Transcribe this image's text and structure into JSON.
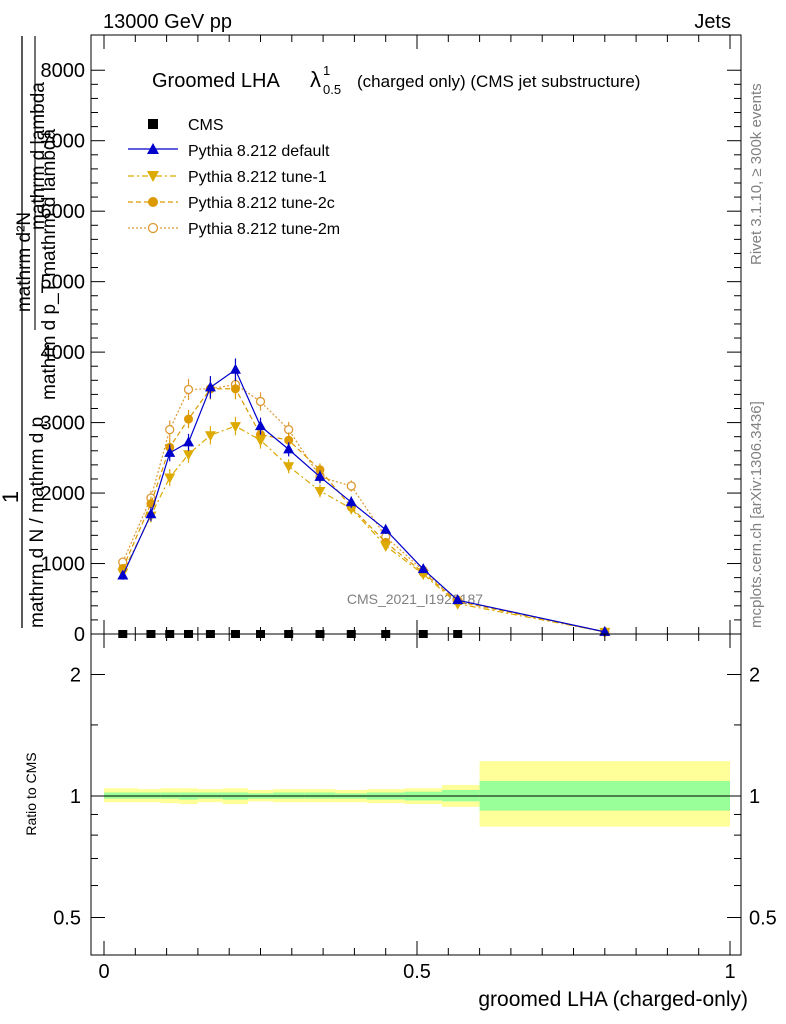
{
  "header": {
    "left": "13000 GeV pp",
    "right": "Jets"
  },
  "side_labels": {
    "rivet": "Rivet 3.1.10, ≥ 300k events",
    "mcplots": "mcplots.cern.ch [arXiv:1306.3436]"
  },
  "watermark": "CMS_2021_I1920187",
  "colors": {
    "cms": "#000000",
    "default": "#0000cc",
    "tune1": "#ddaa00",
    "tune2c": "#dd9900",
    "tune2m": "#dd9933",
    "band_outer": "#ffff99",
    "band_inner": "#99ff99"
  },
  "chart_data": [
    {
      "type": "line",
      "title_main": "Groomed LHA",
      "title_symbol": "λ",
      "title_sup": "1",
      "title_sub": "0.5",
      "title_rest": "(charged only) (CMS jet substructure)",
      "ylabel_numerator": "1",
      "ylabel_denominator": "mathrm d N / mathrm d p",
      "ylabel_denominator_rest": "mathrm d p_T mathrm d lambda",
      "ylabel_inner": "mathrm d²N",
      "ylabel_inner2": "mathrm d p_T mathrm d lambda",
      "ylim": [
        0,
        8500
      ],
      "yticks": [
        0,
        1000,
        2000,
        3000,
        4000,
        5000,
        6000,
        7000,
        8000
      ],
      "ytick_labels": [
        "0",
        "1000",
        "2000",
        "3000",
        "4000",
        "5000",
        "6000",
        "7000",
        "8000"
      ],
      "xlim": [
        -0.04,
        1.02
      ],
      "legend": [
        "CMS",
        "Pythia 8.212 default",
        "Pythia 8.212 tune-1",
        "Pythia 8.212 tune-2c",
        "Pythia 8.212 tune-2m"
      ],
      "series": [
        {
          "name": "CMS",
          "x": [
            0.03,
            0.075,
            0.105,
            0.135,
            0.17,
            0.21,
            0.25,
            0.295,
            0.345,
            0.395,
            0.45,
            0.51,
            0.565
          ],
          "y": [
            0,
            0,
            0,
            0,
            0,
            0,
            0,
            0,
            0,
            0,
            0,
            0,
            0
          ]
        },
        {
          "name": "Pythia 8.212 default",
          "x": [
            0.03,
            0.075,
            0.105,
            0.135,
            0.17,
            0.21,
            0.25,
            0.295,
            0.345,
            0.395,
            0.45,
            0.51,
            0.565,
            0.8
          ],
          "y": [
            830,
            1700,
            2570,
            2720,
            3500,
            3750,
            2950,
            2620,
            2230,
            1870,
            1480,
            920,
            480,
            30
          ],
          "err": [
            60,
            100,
            120,
            120,
            160,
            160,
            120,
            100,
            90,
            80,
            60,
            50,
            40,
            5
          ]
        },
        {
          "name": "Pythia 8.212 tune-1",
          "x": [
            0.03,
            0.075,
            0.105,
            0.135,
            0.17,
            0.21,
            0.25,
            0.295,
            0.345,
            0.395,
            0.45,
            0.51,
            0.565,
            0.8
          ],
          "y": [
            870,
            1680,
            2220,
            2550,
            2820,
            2950,
            2750,
            2380,
            2030,
            1780,
            1250,
            850,
            430,
            30
          ],
          "err": [
            60,
            100,
            120,
            120,
            130,
            130,
            120,
            100,
            90,
            80,
            60,
            50,
            40,
            5
          ]
        },
        {
          "name": "Pythia 8.212 tune-2c",
          "x": [
            0.03,
            0.075,
            0.105,
            0.135,
            0.17,
            0.21,
            0.25,
            0.295,
            0.345,
            0.395,
            0.45,
            0.51,
            0.565,
            0.8
          ],
          "y": [
            930,
            1850,
            2650,
            3050,
            3480,
            3480,
            2830,
            2750,
            2330,
            1800,
            1300,
            870,
            460,
            30
          ],
          "err": [
            60,
            100,
            120,
            130,
            150,
            150,
            120,
            110,
            90,
            80,
            60,
            50,
            40,
            5
          ]
        },
        {
          "name": "Pythia 8.212 tune-2m",
          "x": [
            0.03,
            0.075,
            0.105,
            0.135,
            0.17,
            0.21,
            0.25,
            0.295,
            0.345,
            0.395,
            0.45,
            0.51,
            0.565,
            0.8
          ],
          "y": [
            1020,
            1930,
            2900,
            3470,
            3480,
            3540,
            3300,
            2900,
            2230,
            2100,
            1380,
            900,
            480,
            30
          ],
          "err": [
            60,
            100,
            130,
            150,
            150,
            150,
            130,
            110,
            90,
            80,
            60,
            50,
            40,
            5
          ]
        }
      ]
    },
    {
      "type": "line",
      "ylabel": "Ratio to CMS",
      "xlabel": "groomed LHA (charged-only)",
      "ylim": [
        0.4,
        2.3
      ],
      "yscale": "log",
      "yticks": [
        0.5,
        1,
        2
      ],
      "ytick_labels": [
        "0.5",
        "1",
        "2"
      ],
      "xticks": [
        0,
        0.5,
        1
      ],
      "xtick_labels": [
        "0",
        "0.5",
        "1"
      ],
      "xlim": [
        -0.04,
        1.02
      ],
      "bands": [
        {
          "x0": 0.0,
          "x1": 0.055,
          "inner": [
            0.985,
            1.02
          ],
          "outer": [
            0.965,
            1.045
          ]
        },
        {
          "x0": 0.055,
          "x1": 0.09,
          "inner": [
            0.985,
            1.02
          ],
          "outer": [
            0.965,
            1.04
          ]
        },
        {
          "x0": 0.09,
          "x1": 0.12,
          "inner": [
            0.985,
            1.02
          ],
          "outer": [
            0.96,
            1.045
          ]
        },
        {
          "x0": 0.12,
          "x1": 0.15,
          "inner": [
            0.98,
            1.02
          ],
          "outer": [
            0.955,
            1.045
          ]
        },
        {
          "x0": 0.15,
          "x1": 0.19,
          "inner": [
            0.985,
            1.02
          ],
          "outer": [
            0.965,
            1.04
          ]
        },
        {
          "x0": 0.19,
          "x1": 0.23,
          "inner": [
            0.98,
            1.02
          ],
          "outer": [
            0.955,
            1.045
          ]
        },
        {
          "x0": 0.23,
          "x1": 0.27,
          "inner": [
            0.985,
            1.015
          ],
          "outer": [
            0.97,
            1.035
          ]
        },
        {
          "x0": 0.27,
          "x1": 0.32,
          "inner": [
            0.985,
            1.02
          ],
          "outer": [
            0.965,
            1.04
          ]
        },
        {
          "x0": 0.32,
          "x1": 0.37,
          "inner": [
            0.985,
            1.02
          ],
          "outer": [
            0.965,
            1.04
          ]
        },
        {
          "x0": 0.37,
          "x1": 0.42,
          "inner": [
            0.985,
            1.015
          ],
          "outer": [
            0.965,
            1.035
          ]
        },
        {
          "x0": 0.42,
          "x1": 0.48,
          "inner": [
            0.98,
            1.02
          ],
          "outer": [
            0.96,
            1.04
          ]
        },
        {
          "x0": 0.48,
          "x1": 0.54,
          "inner": [
            0.975,
            1.025
          ],
          "outer": [
            0.955,
            1.045
          ]
        },
        {
          "x0": 0.54,
          "x1": 0.6,
          "inner": [
            0.97,
            1.035
          ],
          "outer": [
            0.94,
            1.065
          ]
        },
        {
          "x0": 0.6,
          "x1": 1.0,
          "inner": [
            0.92,
            1.09
          ],
          "outer": [
            0.84,
            1.22
          ]
        }
      ]
    }
  ]
}
